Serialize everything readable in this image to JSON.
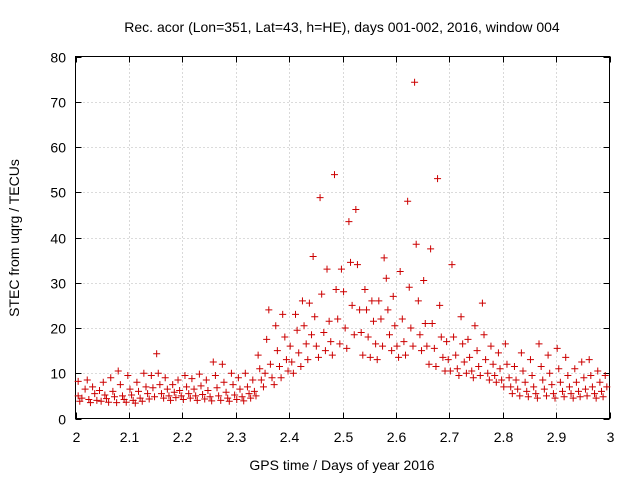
{
  "chart_data": {
    "type": "scatter",
    "title": "Rec. acor (Lon=351, Lat=43, h=HE), days 001-002, 2016, window 004",
    "xlabel": "GPS time / Days of year 2016",
    "ylabel": "STEC from uqrg / TECUs",
    "xlim": [
      2,
      3
    ],
    "ylim": [
      0,
      80
    ],
    "x_ticks": [
      2,
      2.1,
      2.2,
      2.3,
      2.4,
      2.5,
      2.6,
      2.7,
      2.8,
      2.9,
      3
    ],
    "x_tick_labels": [
      "2",
      "2.1",
      "2.2",
      "2.3",
      "2.4",
      "2.5",
      "2.6",
      "2.7",
      "2.8",
      "2.9",
      "3"
    ],
    "y_ticks": [
      0,
      10,
      20,
      30,
      40,
      50,
      60,
      70,
      80
    ],
    "y_tick_labels": [
      "0",
      "10",
      "20",
      "30",
      "40",
      "50",
      "60",
      "70",
      "80"
    ],
    "grid": true,
    "marker": "+",
    "color": "#cc0000",
    "series": [
      {
        "name": "STEC",
        "points": [
          [
            2.005,
            8.2
          ],
          [
            2.005,
            5.0
          ],
          [
            2.008,
            3.8
          ],
          [
            2.012,
            4.5
          ],
          [
            2.018,
            6.5
          ],
          [
            2.022,
            8.5
          ],
          [
            2.025,
            4.2
          ],
          [
            2.028,
            3.5
          ],
          [
            2.032,
            7.0
          ],
          [
            2.036,
            5.5
          ],
          [
            2.04,
            4.0
          ],
          [
            2.045,
            6.2
          ],
          [
            2.048,
            3.8
          ],
          [
            2.052,
            8.0
          ],
          [
            2.055,
            5.2
          ],
          [
            2.058,
            4.4
          ],
          [
            2.062,
            3.6
          ],
          [
            2.066,
            9.0
          ],
          [
            2.07,
            6.0
          ],
          [
            2.073,
            4.8
          ],
          [
            2.077,
            3.5
          ],
          [
            2.08,
            10.5
          ],
          [
            2.084,
            7.5
          ],
          [
            2.088,
            5.0
          ],
          [
            2.091,
            4.2
          ],
          [
            2.095,
            3.6
          ],
          [
            2.098,
            9.5
          ],
          [
            2.102,
            6.5
          ],
          [
            2.105,
            5.2
          ],
          [
            2.108,
            4.0
          ],
          [
            2.112,
            3.4
          ],
          [
            2.115,
            8.0
          ],
          [
            2.118,
            6.0
          ],
          [
            2.121,
            4.5
          ],
          [
            2.125,
            3.8
          ],
          [
            2.128,
            10.0
          ],
          [
            2.132,
            7.0
          ],
          [
            2.135,
            5.5
          ],
          [
            2.138,
            4.3
          ],
          [
            2.142,
            9.5
          ],
          [
            2.145,
            6.8
          ],
          [
            2.148,
            4.8
          ],
          [
            2.152,
            14.3
          ],
          [
            2.155,
            10.0
          ],
          [
            2.158,
            7.5
          ],
          [
            2.161,
            5.5
          ],
          [
            2.165,
            4.5
          ],
          [
            2.168,
            9.0
          ],
          [
            2.172,
            6.5
          ],
          [
            2.175,
            5.0
          ],
          [
            2.178,
            4.0
          ],
          [
            2.182,
            7.5
          ],
          [
            2.185,
            5.8
          ],
          [
            2.188,
            4.6
          ],
          [
            2.192,
            8.5
          ],
          [
            2.195,
            6.2
          ],
          [
            2.198,
            5.0
          ],
          [
            2.202,
            4.2
          ],
          [
            2.205,
            9.5
          ],
          [
            2.208,
            7.0
          ],
          [
            2.212,
            5.5
          ],
          [
            2.215,
            4.5
          ],
          [
            2.218,
            8.8
          ],
          [
            2.222,
            6.5
          ],
          [
            2.225,
            5.0
          ],
          [
            2.228,
            4.0
          ],
          [
            2.232,
            9.8
          ],
          [
            2.235,
            7.2
          ],
          [
            2.238,
            5.3
          ],
          [
            2.242,
            4.3
          ],
          [
            2.245,
            8.5
          ],
          [
            2.248,
            6.2
          ],
          [
            2.252,
            4.8
          ],
          [
            2.255,
            3.9
          ],
          [
            2.258,
            12.5
          ],
          [
            2.262,
            9.5
          ],
          [
            2.265,
            6.8
          ],
          [
            2.268,
            5.0
          ],
          [
            2.272,
            4.0
          ],
          [
            2.275,
            12.0
          ],
          [
            2.278,
            8.0
          ],
          [
            2.282,
            5.8
          ],
          [
            2.285,
            4.5
          ],
          [
            2.288,
            3.8
          ],
          [
            2.292,
            10.0
          ],
          [
            2.295,
            7.5
          ],
          [
            2.298,
            5.2
          ],
          [
            2.302,
            4.2
          ],
          [
            2.305,
            9.0
          ],
          [
            2.308,
            6.5
          ],
          [
            2.312,
            4.8
          ],
          [
            2.315,
            3.9
          ],
          [
            2.318,
            10.0
          ],
          [
            2.322,
            7.0
          ],
          [
            2.325,
            5.5
          ],
          [
            2.328,
            4.5
          ],
          [
            2.332,
            8.5
          ],
          [
            2.335,
            6.0
          ],
          [
            2.338,
            5.0
          ],
          [
            2.342,
            14.0
          ],
          [
            2.345,
            11.0
          ],
          [
            2.348,
            8.5
          ],
          [
            2.352,
            7.0
          ],
          [
            2.355,
            10.0
          ],
          [
            2.358,
            17.5
          ],
          [
            2.362,
            24.0
          ],
          [
            2.365,
            12.0
          ],
          [
            2.368,
            9.0
          ],
          [
            2.372,
            7.5
          ],
          [
            2.375,
            20.5
          ],
          [
            2.378,
            15.0
          ],
          [
            2.382,
            11.5
          ],
          [
            2.385,
            9.0
          ],
          [
            2.388,
            23.0
          ],
          [
            2.392,
            18.0
          ],
          [
            2.395,
            13.0
          ],
          [
            2.398,
            10.5
          ],
          [
            2.402,
            16.0
          ],
          [
            2.405,
            12.5
          ],
          [
            2.408,
            10.0
          ],
          [
            2.412,
            23.0
          ],
          [
            2.415,
            19.5
          ],
          [
            2.418,
            14.5
          ],
          [
            2.422,
            11.5
          ],
          [
            2.425,
            26.0
          ],
          [
            2.428,
            20.5
          ],
          [
            2.432,
            16.5
          ],
          [
            2.435,
            13.0
          ],
          [
            2.438,
            25.5
          ],
          [
            2.442,
            18.5
          ],
          [
            2.445,
            35.8
          ],
          [
            2.448,
            22.5
          ],
          [
            2.451,
            16.0
          ],
          [
            2.455,
            13.5
          ],
          [
            2.458,
            48.8
          ],
          [
            2.461,
            27.5
          ],
          [
            2.465,
            19.0
          ],
          [
            2.468,
            15.0
          ],
          [
            2.471,
            33.0
          ],
          [
            2.475,
            21.5
          ],
          [
            2.478,
            17.0
          ],
          [
            2.481,
            14.0
          ],
          [
            2.485,
            53.9
          ],
          [
            2.488,
            28.5
          ],
          [
            2.491,
            22.0
          ],
          [
            2.495,
            16.5
          ],
          [
            2.498,
            33.0
          ],
          [
            2.502,
            28.0
          ],
          [
            2.505,
            20.0
          ],
          [
            2.508,
            15.5
          ],
          [
            2.512,
            43.5
          ],
          [
            2.515,
            34.5
          ],
          [
            2.518,
            25.0
          ],
          [
            2.522,
            18.5
          ],
          [
            2.525,
            46.2
          ],
          [
            2.528,
            34.0
          ],
          [
            2.532,
            24.0
          ],
          [
            2.535,
            19.0
          ],
          [
            2.538,
            14.0
          ],
          [
            2.542,
            28.5
          ],
          [
            2.545,
            24.0
          ],
          [
            2.548,
            18.0
          ],
          [
            2.552,
            13.5
          ],
          [
            2.555,
            26.0
          ],
          [
            2.558,
            21.5
          ],
          [
            2.562,
            16.5
          ],
          [
            2.565,
            13.0
          ],
          [
            2.568,
            26.0
          ],
          [
            2.572,
            22.0
          ],
          [
            2.575,
            16.0
          ],
          [
            2.578,
            35.5
          ],
          [
            2.582,
            31.0
          ],
          [
            2.585,
            24.0
          ],
          [
            2.588,
            18.5
          ],
          [
            2.592,
            15.0
          ],
          [
            2.595,
            27.0
          ],
          [
            2.598,
            20.5
          ],
          [
            2.602,
            16.0
          ],
          [
            2.605,
            13.5
          ],
          [
            2.608,
            32.5
          ],
          [
            2.612,
            22.0
          ],
          [
            2.615,
            17.0
          ],
          [
            2.618,
            14.0
          ],
          [
            2.622,
            48.0
          ],
          [
            2.625,
            29.0
          ],
          [
            2.628,
            20.0
          ],
          [
            2.632,
            16.0
          ],
          [
            2.635,
            74.3
          ],
          [
            2.638,
            38.5
          ],
          [
            2.642,
            26.0
          ],
          [
            2.645,
            18.5
          ],
          [
            2.648,
            15.0
          ],
          [
            2.652,
            30.5
          ],
          [
            2.655,
            21.0
          ],
          [
            2.658,
            16.0
          ],
          [
            2.662,
            12.0
          ],
          [
            2.665,
            37.5
          ],
          [
            2.668,
            21.0
          ],
          [
            2.672,
            15.5
          ],
          [
            2.675,
            11.5
          ],
          [
            2.678,
            53.0
          ],
          [
            2.682,
            25.0
          ],
          [
            2.685,
            18.0
          ],
          [
            2.688,
            13.5
          ],
          [
            2.692,
            10.5
          ],
          [
            2.695,
            17.0
          ],
          [
            2.698,
            13.0
          ],
          [
            2.702,
            10.5
          ],
          [
            2.705,
            34.0
          ],
          [
            2.708,
            18.0
          ],
          [
            2.712,
            14.0
          ],
          [
            2.715,
            11.0
          ],
          [
            2.718,
            9.5
          ],
          [
            2.722,
            22.5
          ],
          [
            2.725,
            16.5
          ],
          [
            2.728,
            12.5
          ],
          [
            2.732,
            10.0
          ],
          [
            2.735,
            17.5
          ],
          [
            2.738,
            13.5
          ],
          [
            2.742,
            10.5
          ],
          [
            2.745,
            9.0
          ],
          [
            2.748,
            20.5
          ],
          [
            2.752,
            15.0
          ],
          [
            2.755,
            11.5
          ],
          [
            2.758,
            9.5
          ],
          [
            2.762,
            25.5
          ],
          [
            2.765,
            18.5
          ],
          [
            2.768,
            13.0
          ],
          [
            2.772,
            10.0
          ],
          [
            2.775,
            8.5
          ],
          [
            2.778,
            16.0
          ],
          [
            2.782,
            12.0
          ],
          [
            2.785,
            9.5
          ],
          [
            2.788,
            8.0
          ],
          [
            2.792,
            14.5
          ],
          [
            2.795,
            11.0
          ],
          [
            2.798,
            8.5
          ],
          [
            2.802,
            7.0
          ],
          [
            2.805,
            16.5
          ],
          [
            2.808,
            12.0
          ],
          [
            2.812,
            9.0
          ],
          [
            2.815,
            7.0
          ],
          [
            2.818,
            5.5
          ],
          [
            2.822,
            11.5
          ],
          [
            2.825,
            8.5
          ],
          [
            2.828,
            6.5
          ],
          [
            2.832,
            5.0
          ],
          [
            2.835,
            14.5
          ],
          [
            2.838,
            10.5
          ],
          [
            2.842,
            8.0
          ],
          [
            2.845,
            6.0
          ],
          [
            2.848,
            4.8
          ],
          [
            2.852,
            13.0
          ],
          [
            2.855,
            9.5
          ],
          [
            2.858,
            7.0
          ],
          [
            2.862,
            5.5
          ],
          [
            2.865,
            4.5
          ],
          [
            2.868,
            16.5
          ],
          [
            2.872,
            11.5
          ],
          [
            2.875,
            8.5
          ],
          [
            2.878,
            6.5
          ],
          [
            2.882,
            5.0
          ],
          [
            2.885,
            14.0
          ],
          [
            2.888,
            10.0
          ],
          [
            2.892,
            7.5
          ],
          [
            2.895,
            5.5
          ],
          [
            2.898,
            4.5
          ],
          [
            2.902,
            15.5
          ],
          [
            2.905,
            11.0
          ],
          [
            2.908,
            8.0
          ],
          [
            2.912,
            6.0
          ],
          [
            2.915,
            4.8
          ],
          [
            2.918,
            13.5
          ],
          [
            2.922,
            9.5
          ],
          [
            2.925,
            7.0
          ],
          [
            2.928,
            5.5
          ],
          [
            2.932,
            4.5
          ],
          [
            2.935,
            11.0
          ],
          [
            2.938,
            8.0
          ],
          [
            2.942,
            6.0
          ],
          [
            2.945,
            4.8
          ],
          [
            2.948,
            12.5
          ],
          [
            2.952,
            9.0
          ],
          [
            2.955,
            6.5
          ],
          [
            2.958,
            5.0
          ],
          [
            2.962,
            13.0
          ],
          [
            2.965,
            9.5
          ],
          [
            2.968,
            7.0
          ],
          [
            2.972,
            5.5
          ],
          [
            2.975,
            4.5
          ],
          [
            2.978,
            10.5
          ],
          [
            2.982,
            8.0
          ],
          [
            2.985,
            6.0
          ],
          [
            2.988,
            4.8
          ],
          [
            2.992,
            9.5
          ],
          [
            2.995,
            7.0
          ]
        ]
      }
    ]
  }
}
